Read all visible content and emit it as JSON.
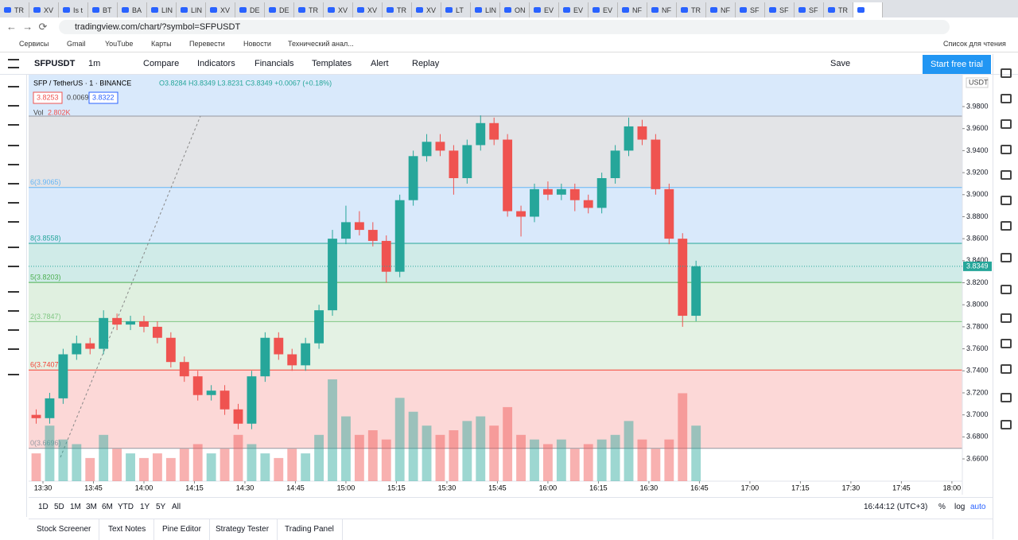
{
  "browser": {
    "tabs": [
      "TR",
      "XV",
      "Is t",
      "BT",
      "BA",
      "LIN",
      "LIN",
      "XV",
      "DE",
      "DE",
      "TR",
      "XV",
      "XV",
      "TR",
      "XV",
      "LT",
      "LIN",
      "ON",
      "EV",
      "EV",
      "EV",
      "NF",
      "NF",
      "TR",
      "NF",
      "SF",
      "SF",
      "SF",
      "TR"
    ],
    "url": "tradingview.com/chart/?symbol=SFPUSDT",
    "bookmarks": [
      "Сервисы",
      "Gmail",
      "YouTube",
      "Карты",
      "Перевести",
      "Новости",
      "Технический анал..."
    ],
    "reading_list": "Список для чтения"
  },
  "toolbar": {
    "symbol": "SFPUSDT",
    "interval": "1m",
    "buttons": [
      "Compare",
      "Indicators",
      "Financials",
      "Templates",
      "Alert",
      "Replay"
    ],
    "save": "Save",
    "cta": "Start free trial"
  },
  "chart_data": {
    "type": "candlestick",
    "title": "SFP / TetherUS · 1 · BINANCE",
    "ohlc_legend": "O3.8284 H3.8349 L3.8231 C3.8349 +0.0067 (+0.18%)",
    "bid": 3.8253,
    "spread": 0.0069,
    "ask": 3.8322,
    "currency": "USDT",
    "volume_label": "Vol",
    "volume_value": "2.802K",
    "up_color": "#26a69a",
    "down_color": "#ef5350",
    "x": [
      808,
      812,
      816,
      820,
      824,
      828,
      832,
      836,
      840,
      844,
      848,
      852,
      856,
      860,
      864,
      868,
      872,
      876,
      880,
      884,
      888,
      892,
      896,
      900,
      904,
      908,
      912,
      916,
      920,
      924,
      928,
      932,
      936,
      940,
      944,
      948,
      952,
      956,
      960,
      964,
      968,
      972,
      976,
      980,
      984,
      988,
      992,
      996,
      1000,
      1004
    ],
    "open": [
      3.7,
      3.697,
      3.715,
      3.755,
      3.765,
      3.76,
      3.788,
      3.782,
      3.785,
      3.78,
      3.77,
      3.748,
      3.735,
      3.718,
      3.722,
      3.705,
      3.692,
      3.735,
      3.77,
      3.755,
      3.745,
      3.765,
      3.795,
      3.86,
      3.875,
      3.868,
      3.858,
      3.83,
      3.895,
      3.935,
      3.948,
      3.94,
      3.915,
      3.945,
      3.965,
      3.95,
      3.885,
      3.88,
      3.905,
      3.9,
      3.905,
      3.895,
      3.888,
      3.915,
      3.94,
      3.962,
      3.95,
      3.905,
      3.86,
      3.79
    ],
    "high": [
      3.705,
      3.72,
      3.76,
      3.772,
      3.77,
      3.795,
      3.792,
      3.79,
      3.79,
      3.785,
      3.775,
      3.753,
      3.74,
      3.727,
      3.727,
      3.71,
      3.74,
      3.775,
      3.775,
      3.76,
      3.77,
      3.8,
      3.868,
      3.89,
      3.885,
      3.875,
      3.863,
      3.9,
      3.94,
      3.955,
      3.955,
      3.945,
      3.95,
      3.972,
      3.97,
      3.955,
      3.89,
      3.91,
      3.912,
      3.91,
      3.91,
      3.9,
      3.92,
      3.945,
      3.97,
      3.968,
      3.955,
      3.91,
      3.865,
      3.84
    ],
    "low": [
      3.692,
      3.692,
      3.71,
      3.75,
      3.755,
      3.755,
      3.777,
      3.777,
      3.775,
      3.765,
      3.743,
      3.73,
      3.713,
      3.713,
      3.7,
      3.687,
      3.687,
      3.73,
      3.75,
      3.74,
      3.74,
      3.76,
      3.79,
      3.855,
      3.863,
      3.853,
      3.82,
      3.825,
      3.89,
      3.93,
      3.935,
      3.9,
      3.91,
      3.94,
      3.945,
      3.88,
      3.862,
      3.875,
      3.895,
      3.895,
      3.885,
      3.883,
      3.883,
      3.91,
      3.935,
      3.945,
      3.9,
      3.855,
      3.78,
      3.785
    ],
    "close": [
      3.697,
      3.715,
      3.755,
      3.765,
      3.76,
      3.788,
      3.782,
      3.785,
      3.78,
      3.77,
      3.748,
      3.735,
      3.718,
      3.722,
      3.705,
      3.692,
      3.735,
      3.77,
      3.755,
      3.745,
      3.765,
      3.795,
      3.86,
      3.875,
      3.868,
      3.858,
      3.83,
      3.895,
      3.935,
      3.948,
      3.94,
      3.915,
      3.945,
      3.965,
      3.95,
      3.885,
      3.88,
      3.905,
      3.9,
      3.905,
      3.895,
      3.888,
      3.915,
      3.94,
      3.962,
      3.95,
      3.905,
      3.86,
      3.79,
      3.835
    ],
    "volume": [
      0.6,
      1.2,
      0.9,
      0.8,
      0.5,
      1.0,
      0.7,
      0.6,
      0.5,
      0.6,
      0.5,
      0.7,
      0.8,
      0.6,
      0.7,
      1.0,
      0.8,
      0.6,
      0.5,
      0.7,
      0.6,
      1.0,
      2.2,
      1.4,
      1.0,
      1.1,
      0.9,
      1.8,
      1.5,
      1.2,
      1.0,
      1.1,
      1.3,
      1.4,
      1.2,
      1.6,
      1.0,
      0.9,
      0.8,
      0.9,
      0.7,
      0.8,
      0.9,
      1.0,
      1.3,
      0.9,
      0.7,
      0.9,
      1.9,
      1.2
    ],
    "xlim": [
      805.75,
      1083.1
    ],
    "xticks": [
      {
        "value": 810,
        "label": "13:30"
      },
      {
        "value": 825,
        "label": "13:45"
      },
      {
        "value": 840,
        "label": "14:00"
      },
      {
        "value": 855,
        "label": "14:15"
      },
      {
        "value": 870,
        "label": "14:30"
      },
      {
        "value": 885,
        "label": "14:45"
      },
      {
        "value": 900,
        "label": "15:00"
      },
      {
        "value": 915,
        "label": "15:15"
      },
      {
        "value": 930,
        "label": "15:30"
      },
      {
        "value": 945,
        "label": "15:45"
      },
      {
        "value": 960,
        "label": "16:00"
      },
      {
        "value": 975,
        "label": "16:15"
      },
      {
        "value": 990,
        "label": "16:30"
      },
      {
        "value": 1005,
        "label": "16:45"
      },
      {
        "value": 1020,
        "label": "17:00"
      },
      {
        "value": 1035,
        "label": "17:15"
      },
      {
        "value": 1050,
        "label": "17:30"
      },
      {
        "value": 1065,
        "label": "17:45"
      },
      {
        "value": 1080,
        "label": "18:00"
      }
    ],
    "ylim": [
      3.6398,
      4.0089
    ],
    "yticks": [
      {
        "value": 3.66,
        "label": "3.6600"
      },
      {
        "value": 3.68,
        "label": "3.6800"
      },
      {
        "value": 3.7,
        "label": "3.7000"
      },
      {
        "value": 3.72,
        "label": "3.7200"
      },
      {
        "value": 3.74,
        "label": "3.7400"
      },
      {
        "value": 3.76,
        "label": "3.7600"
      },
      {
        "value": 3.78,
        "label": "3.7800"
      },
      {
        "value": 3.8,
        "label": "3.8000"
      },
      {
        "value": 3.82,
        "label": "3.8200"
      },
      {
        "value": 3.84,
        "label": "3.8400"
      },
      {
        "value": 3.86,
        "label": "3.8600"
      },
      {
        "value": 3.88,
        "label": "3.8800"
      },
      {
        "value": 3.9,
        "label": "3.9000"
      },
      {
        "value": 3.92,
        "label": "3.9200"
      },
      {
        "value": 3.94,
        "label": "3.9400"
      },
      {
        "value": 3.96,
        "label": "3.9600"
      },
      {
        "value": 3.98,
        "label": "3.9800"
      }
    ],
    "fib_levels": [
      {
        "value": 3.9713,
        "color": "#9598a1",
        "fill": "#d9e9fb"
      },
      {
        "value": 3.9065,
        "label": "6(3.9065)",
        "color": "#64b5f6",
        "fill": "#e3e4e7"
      },
      {
        "value": 3.8558,
        "label": "8(3.8558)",
        "color": "#26a69a",
        "fill": "#d9e9fb"
      },
      {
        "value": 3.8203,
        "label": "5(3.8203)",
        "color": "#4caf50",
        "fill": "#d0ebe8"
      },
      {
        "value": 3.7847,
        "label": "2(3.7847)",
        "color": "#81c784",
        "fill": "#e0f0e0"
      },
      {
        "value": 3.7407,
        "label": "6(3.7407)",
        "color": "#f44336",
        "fill": "#e4f2e4"
      },
      {
        "value": 3.6696,
        "label": "0(3.6696)",
        "color": "#9598a1",
        "fill": "#fcd8d7"
      }
    ],
    "last_price": 3.8349
  },
  "range_bar": {
    "ranges": [
      "1D",
      "5D",
      "1M",
      "3M",
      "6M",
      "YTD",
      "1Y",
      "5Y",
      "All"
    ],
    "clock": "16:44:12 (UTC+3)",
    "options": [
      "%",
      "log",
      "auto"
    ]
  },
  "bottom_tabs": [
    "Stock Screener",
    "Text Notes",
    "Pine Editor",
    "Strategy Tester",
    "Trading Panel"
  ]
}
